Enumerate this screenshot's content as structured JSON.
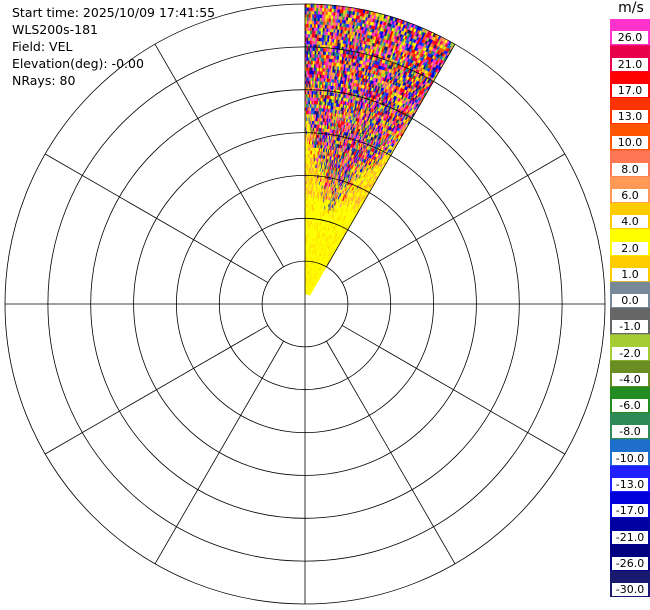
{
  "info": {
    "start_time": "Start time: 2025/10/09 17:41:55",
    "instrument": "WLS200s-181",
    "field": "Field: VEL",
    "elevation": "Elevation(deg): -0.00",
    "nrays": "NRays: 80"
  },
  "colorbar": {
    "unit": "m/s",
    "ticks": [
      "26.0",
      "21.0",
      "17.0",
      "13.0",
      "10.0",
      "8.0",
      "6.0",
      "4.0",
      "2.0",
      "1.0",
      "0.0",
      "-1.0",
      "-2.0",
      "-4.0",
      "-6.0",
      "-8.0",
      "-10.0",
      "-13.0",
      "-17.0",
      "-21.0",
      "-26.0",
      "-30.0"
    ],
    "colors": [
      "#ff33cc",
      "#e8004a",
      "#ff0000",
      "#ff3300",
      "#ff5500",
      "#ff7755",
      "#ff9955",
      "#ffcc00",
      "#ffff00",
      "#ffcc00",
      "#778899",
      "#666666",
      "#a6cc33",
      "#6b8e23",
      "#228b22",
      "#2e8b57",
      "#1e6fcc",
      "#2020ff",
      "#0000dd",
      "#0000a0",
      "#000080",
      "#191970"
    ]
  },
  "chart_data": {
    "type": "polar-ppi",
    "field": "VEL",
    "units": "m/s",
    "elevation_deg": -0.0,
    "n_rays": 80,
    "azimuth_range_deg": [
      0,
      30
    ],
    "range_rings": 7,
    "spokes_deg": [
      0,
      30,
      60,
      90,
      120,
      150,
      180,
      210,
      240,
      270,
      300,
      330
    ],
    "value_range": [
      -30,
      30
    ]
  }
}
